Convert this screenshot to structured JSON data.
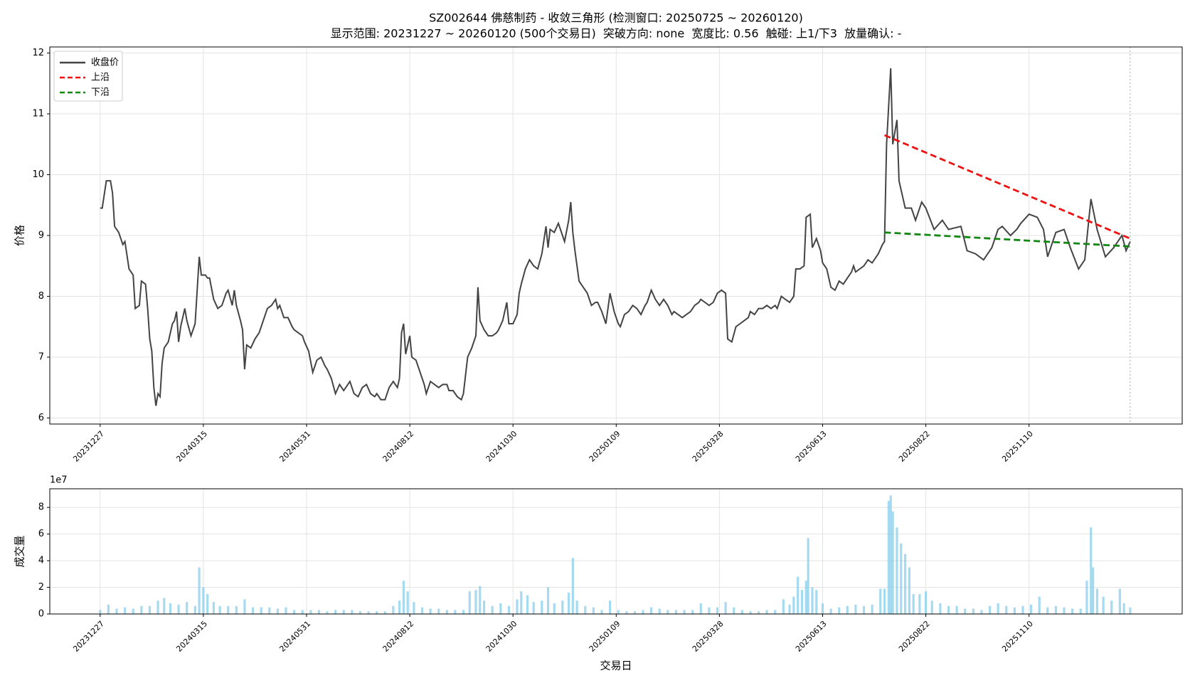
{
  "chart_data": [
    {
      "type": "line",
      "title": "SZ002644 佛慈制药 - 收敛三角形 (检测窗口: 20250725 ~ 20260120)",
      "subtitle": "显示范围: 20231227 ~ 20260120 (500个交易日)  突破方向: none  宽度比: 0.56  触碰: 上1/下3  放量确认: -",
      "ylabel": "价格",
      "xlim": [
        -24.4,
        524.2
      ],
      "ylim": [
        5.9,
        12.1
      ],
      "yticks": [
        6,
        7,
        8,
        9,
        10,
        11,
        12
      ],
      "xticks": [
        {
          "value": 0,
          "label": "20231227"
        },
        {
          "value": 50,
          "label": "20240315"
        },
        {
          "value": 100,
          "label": "20240531"
        },
        {
          "value": 150,
          "label": "20240812"
        },
        {
          "value": 200,
          "label": "20241030"
        },
        {
          "value": 250,
          "label": "20250109"
        },
        {
          "value": 300,
          "label": "20250328"
        },
        {
          "value": 350,
          "label": "20250613"
        },
        {
          "value": 400,
          "label": "20250822"
        },
        {
          "value": 450,
          "label": "20251110"
        }
      ],
      "grid": true,
      "legend": "upper left",
      "vline_x": 499,
      "series": [
        {
          "name": "收盘价",
          "color": "#444444",
          "dash": false,
          "x": [
            0,
            1,
            3,
            5,
            6,
            7,
            9,
            11,
            12,
            14,
            16,
            17,
            19,
            20,
            22,
            23,
            24,
            25,
            26,
            27,
            28,
            29,
            30,
            31,
            33,
            35,
            36,
            37,
            38,
            39,
            41,
            42,
            44,
            46,
            48,
            49,
            51,
            52,
            53,
            55,
            57,
            59,
            61,
            62,
            64,
            65,
            66,
            68,
            69,
            70,
            71,
            73,
            75,
            77,
            79,
            81,
            83,
            85,
            86,
            87,
            89,
            91,
            93,
            94,
            96,
            98,
            99,
            101,
            103,
            105,
            107,
            109,
            110,
            112,
            114,
            116,
            118,
            120,
            121,
            123,
            125,
            127,
            129,
            131,
            133,
            134,
            136,
            138,
            140,
            142,
            144,
            145,
            146,
            147,
            148,
            150,
            151,
            153,
            155,
            157,
            158,
            160,
            162,
            164,
            166,
            168,
            169,
            171,
            173,
            175,
            176,
            178,
            180,
            182,
            183,
            184,
            186,
            188,
            190,
            192,
            193,
            195,
            197,
            198,
            200,
            202,
            203,
            204,
            206,
            208,
            210,
            212,
            214,
            216,
            217,
            218,
            220,
            222,
            224,
            225,
            227,
            228,
            229,
            230,
            232,
            234,
            236,
            238,
            240,
            241,
            243,
            245,
            247,
            249,
            251,
            252,
            254,
            256,
            258,
            260,
            262,
            264,
            265,
            267,
            269,
            271,
            273,
            275,
            277,
            278,
            280,
            282,
            284,
            286,
            288,
            290,
            291,
            293,
            295,
            297,
            299,
            301,
            303,
            304,
            306,
            308,
            310,
            312,
            314,
            315,
            317,
            319,
            321,
            323,
            325,
            327,
            328,
            330,
            332,
            334,
            336,
            337,
            339,
            341,
            342,
            344,
            345,
            347,
            349,
            350,
            352,
            354,
            356,
            358,
            360,
            362,
            364,
            365,
            366,
            368,
            370,
            372,
            374,
            376,
            377,
            379,
            380,
            381,
            383,
            384,
            386,
            387,
            389,
            390,
            393,
            395,
            398,
            400,
            404,
            408,
            411,
            417,
            420,
            424,
            428,
            432,
            435,
            437,
            441,
            444,
            446,
            450,
            454,
            457,
            459,
            463,
            467,
            470,
            474,
            477,
            480,
            483,
            487,
            491,
            495,
            497,
            499
          ],
          "values": [
            9.45,
            9.45,
            9.9,
            9.9,
            9.7,
            9.15,
            9.05,
            8.85,
            8.9,
            8.45,
            8.35,
            7.8,
            7.85,
            8.25,
            8.2,
            7.8,
            7.3,
            7.1,
            6.5,
            6.2,
            6.4,
            6.35,
            6.9,
            7.15,
            7.25,
            7.55,
            7.6,
            7.75,
            7.25,
            7.5,
            7.8,
            7.6,
            7.35,
            7.55,
            8.65,
            8.35,
            8.35,
            8.3,
            8.3,
            7.95,
            7.8,
            7.85,
            8.05,
            8.1,
            7.85,
            8.1,
            7.85,
            7.6,
            7.45,
            6.8,
            7.2,
            7.15,
            7.3,
            7.4,
            7.6,
            7.8,
            7.85,
            7.95,
            7.8,
            7.85,
            7.65,
            7.65,
            7.5,
            7.45,
            7.4,
            7.35,
            7.25,
            7.1,
            6.75,
            6.95,
            7.0,
            6.85,
            6.8,
            6.65,
            6.4,
            6.55,
            6.45,
            6.55,
            6.6,
            6.4,
            6.35,
            6.5,
            6.55,
            6.4,
            6.35,
            6.4,
            6.3,
            6.3,
            6.5,
            6.6,
            6.5,
            6.65,
            7.4,
            7.55,
            7.05,
            7.35,
            7.0,
            6.95,
            6.75,
            6.55,
            6.4,
            6.6,
            6.55,
            6.5,
            6.55,
            6.55,
            6.45,
            6.45,
            6.35,
            6.3,
            6.4,
            7.0,
            7.15,
            7.35,
            8.15,
            7.6,
            7.45,
            7.35,
            7.35,
            7.4,
            7.45,
            7.6,
            7.9,
            7.55,
            7.55,
            7.7,
            8.05,
            8.2,
            8.45,
            8.6,
            8.5,
            8.45,
            8.7,
            9.15,
            8.8,
            9.1,
            9.05,
            9.2,
            9.0,
            8.9,
            9.25,
            9.55,
            9.05,
            8.75,
            8.25,
            8.15,
            8.05,
            7.85,
            7.9,
            7.9,
            7.75,
            7.55,
            8.05,
            7.75,
            7.55,
            7.5,
            7.7,
            7.75,
            7.85,
            7.8,
            7.7,
            7.85,
            7.9,
            8.1,
            7.95,
            7.85,
            7.95,
            7.85,
            7.7,
            7.75,
            7.7,
            7.65,
            7.7,
            7.75,
            7.85,
            7.9,
            7.95,
            7.9,
            7.85,
            7.9,
            8.05,
            8.1,
            8.05,
            7.3,
            7.25,
            7.5,
            7.55,
            7.6,
            7.65,
            7.75,
            7.7,
            7.8,
            7.8,
            7.85,
            7.8,
            7.85,
            7.8,
            8.0,
            7.95,
            7.9,
            8.0,
            8.45,
            8.45,
            8.5,
            9.3,
            9.35,
            8.8,
            8.95,
            8.75,
            8.55,
            8.45,
            8.15,
            8.1,
            8.25,
            8.2,
            8.3,
            8.4,
            8.5,
            8.4,
            8.45,
            8.5,
            8.6,
            8.55,
            8.65,
            8.7,
            8.85,
            8.9,
            10.5,
            11.75,
            10.5,
            10.9,
            9.9,
            9.6,
            9.45,
            9.45,
            9.25,
            9.55,
            9.45,
            9.1,
            9.25,
            9.1,
            9.15,
            8.75,
            8.7,
            8.6,
            8.8,
            9.1,
            9.15,
            9.0,
            9.1,
            9.2,
            9.35,
            9.3,
            9.1,
            8.65,
            9.05,
            9.1,
            8.8,
            8.45,
            8.6,
            9.6,
            9.1,
            8.65,
            8.8,
            9.0,
            8.75,
            8.9
          ]
        },
        {
          "name": "上沿",
          "color": "#ee1111",
          "dash": true,
          "x": [
            380,
            499
          ],
          "values": [
            10.65,
            8.95
          ]
        },
        {
          "name": "下沿",
          "color": "#118811",
          "dash": true,
          "x": [
            380,
            499
          ],
          "values": [
            9.05,
            8.82
          ]
        }
      ]
    },
    {
      "type": "bar",
      "ylabel": "成交量",
      "xlabel": "交易日",
      "offset_label": "1e7",
      "xlim": [
        -24.4,
        524.2
      ],
      "ylim": [
        0,
        9.4
      ],
      "yticks": [
        0,
        2,
        4,
        6,
        8
      ],
      "xticks": [
        {
          "value": 0,
          "label": "20231227"
        },
        {
          "value": 50,
          "label": "20240315"
        },
        {
          "value": 100,
          "label": "20240531"
        },
        {
          "value": 150,
          "label": "20240812"
        },
        {
          "value": 200,
          "label": "20241030"
        },
        {
          "value": 250,
          "label": "20250109"
        },
        {
          "value": 300,
          "label": "20250328"
        },
        {
          "value": 350,
          "label": "20250613"
        },
        {
          "value": 400,
          "label": "20250822"
        },
        {
          "value": 450,
          "label": "20251110"
        }
      ],
      "grid": true,
      "color": "#87ceeb",
      "x": [
        0,
        4,
        8,
        12,
        16,
        20,
        24,
        28,
        31,
        34,
        38,
        42,
        46,
        48,
        50,
        52,
        55,
        58,
        62,
        66,
        70,
        74,
        78,
        82,
        86,
        90,
        94,
        98,
        102,
        106,
        110,
        114,
        118,
        122,
        126,
        130,
        134,
        138,
        142,
        145,
        147,
        149,
        152,
        156,
        160,
        164,
        168,
        172,
        176,
        179,
        182,
        184,
        186,
        190,
        194,
        198,
        202,
        204,
        207,
        210,
        214,
        217,
        220,
        224,
        227,
        229,
        231,
        235,
        239,
        243,
        247,
        251,
        255,
        259,
        263,
        267,
        271,
        275,
        279,
        283,
        287,
        291,
        295,
        299,
        303,
        307,
        311,
        315,
        319,
        323,
        327,
        331,
        334,
        336,
        338,
        340,
        342,
        343,
        345,
        347,
        350,
        354,
        358,
        362,
        366,
        370,
        374,
        378,
        380,
        382,
        383,
        384,
        386,
        388,
        390,
        392,
        394,
        397,
        400,
        403,
        407,
        411,
        415,
        419,
        423,
        427,
        431,
        435,
        439,
        443,
        447,
        451,
        455,
        459,
        463,
        467,
        471,
        475,
        478,
        480,
        481,
        483,
        486,
        490,
        494,
        496,
        499
      ],
      "values": [
        0.3,
        0.7,
        0.4,
        0.5,
        0.4,
        0.6,
        0.6,
        1.0,
        1.2,
        0.8,
        0.7,
        0.9,
        0.6,
        3.5,
        2.0,
        1.5,
        0.9,
        0.6,
        0.6,
        0.6,
        1.1,
        0.5,
        0.5,
        0.5,
        0.4,
        0.5,
        0.3,
        0.3,
        0.3,
        0.3,
        0.2,
        0.3,
        0.3,
        0.3,
        0.2,
        0.2,
        0.2,
        0.2,
        0.6,
        1.0,
        2.5,
        1.7,
        0.9,
        0.5,
        0.4,
        0.4,
        0.3,
        0.3,
        0.3,
        1.7,
        1.8,
        2.1,
        1.0,
        0.6,
        0.8,
        0.6,
        1.1,
        1.7,
        1.4,
        0.9,
        1.0,
        2.0,
        0.8,
        1.0,
        1.6,
        4.2,
        1.0,
        0.6,
        0.5,
        0.3,
        1.0,
        0.3,
        0.2,
        0.2,
        0.3,
        0.5,
        0.4,
        0.3,
        0.3,
        0.3,
        0.3,
        0.8,
        0.5,
        0.5,
        0.9,
        0.5,
        0.3,
        0.2,
        0.2,
        0.3,
        0.3,
        1.1,
        0.7,
        1.3,
        2.8,
        1.8,
        2.5,
        5.7,
        2.0,
        1.8,
        0.8,
        0.4,
        0.5,
        0.6,
        0.7,
        0.6,
        0.7,
        1.9,
        1.9,
        8.5,
        8.9,
        7.7,
        6.5,
        5.3,
        4.5,
        3.5,
        1.5,
        1.5,
        1.7,
        1.0,
        0.8,
        0.6,
        0.6,
        0.4,
        0.4,
        0.3,
        0.6,
        0.8,
        0.6,
        0.5,
        0.6,
        0.7,
        1.3,
        0.5,
        0.6,
        0.5,
        0.4,
        0.4,
        2.5,
        6.5,
        3.5,
        1.9,
        1.3,
        1.0,
        1.9,
        0.8,
        0.5
      ]
    }
  ]
}
